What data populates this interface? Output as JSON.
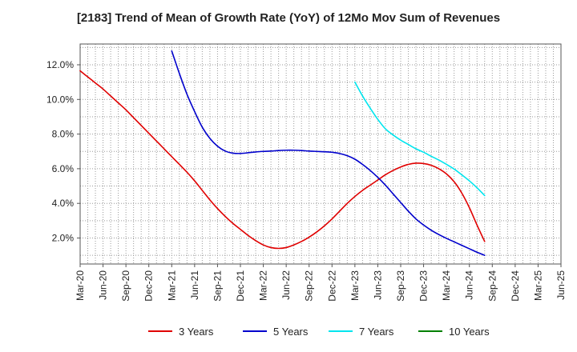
{
  "chart_data": {
    "type": "line",
    "title": "[2183]  Trend of Mean of Growth Rate (YoY) of 12Mo Mov Sum of Revenues",
    "xlabel": "",
    "ylabel": "",
    "x_tick_labels": [
      "Mar-20",
      "Jun-20",
      "Sep-20",
      "Dec-20",
      "Mar-21",
      "Jun-21",
      "Sep-21",
      "Dec-21",
      "Mar-22",
      "Jun-22",
      "Sep-22",
      "Dec-22",
      "Mar-23",
      "Jun-23",
      "Sep-23",
      "Dec-23",
      "Mar-24",
      "Jun-24",
      "Sep-24",
      "Dec-24",
      "Mar-25",
      "Jun-25"
    ],
    "y_ticks": [
      2.0,
      4.0,
      6.0,
      8.0,
      10.0,
      12.0
    ],
    "y_tick_labels": [
      "2.0%",
      "4.0%",
      "6.0%",
      "8.0%",
      "10.0%",
      "12.0%"
    ],
    "ylim": [
      0.5,
      13.2
    ],
    "grid": true,
    "legend_position": "bottom",
    "series": [
      {
        "name": "3 Years",
        "color": "#e00000",
        "x": [
          0,
          1,
          2,
          3,
          4,
          5,
          6,
          7,
          8,
          9,
          10,
          11,
          12,
          13,
          14,
          15,
          16,
          17,
          18,
          19,
          20,
          21,
          22,
          23,
          24,
          25,
          26,
          27,
          28,
          29,
          30,
          31,
          32,
          33,
          34,
          35,
          36,
          37,
          38,
          39,
          40,
          41,
          42,
          43,
          44,
          45,
          46,
          47,
          48,
          49,
          50,
          51,
          52,
          53,
          54,
          55,
          56,
          57,
          58,
          59,
          60
        ],
        "values": [
          11.65,
          11.3,
          10.95,
          10.6,
          10.2,
          9.8,
          9.4,
          8.95,
          8.5,
          8.05,
          7.6,
          7.15,
          6.7,
          6.25,
          5.8,
          5.3,
          4.75,
          4.2,
          3.7,
          3.25,
          2.85,
          2.5,
          2.15,
          1.85,
          1.6,
          1.45,
          1.4,
          1.45,
          1.6,
          1.8,
          2.05,
          2.35,
          2.7,
          3.1,
          3.55,
          4.0,
          4.4,
          4.75,
          5.05,
          5.35,
          5.65,
          5.9,
          6.1,
          6.25,
          6.32,
          6.3,
          6.2,
          6.0,
          5.7,
          5.25,
          4.6,
          3.75,
          2.75,
          1.8,
          null,
          null,
          null,
          null,
          null,
          null,
          null
        ]
      },
      {
        "name": "5 Years",
        "color": "#0000cc",
        "x": [
          12,
          13,
          14,
          15,
          16,
          17,
          18,
          19,
          20,
          21,
          22,
          23,
          24,
          25,
          26,
          27,
          28,
          29,
          30,
          31,
          32,
          33,
          34,
          35,
          36,
          37,
          38,
          39,
          40,
          41,
          42,
          43,
          44,
          45,
          46,
          47,
          48,
          49,
          50,
          51,
          52,
          53
        ],
        "values": [
          12.8,
          11.5,
          10.3,
          9.3,
          8.4,
          7.75,
          7.3,
          7.02,
          6.9,
          6.88,
          6.92,
          6.97,
          7.0,
          7.02,
          7.05,
          7.07,
          7.07,
          7.05,
          7.02,
          7.0,
          6.98,
          6.95,
          6.88,
          6.75,
          6.55,
          6.25,
          5.9,
          5.5,
          5.05,
          4.55,
          4.05,
          3.55,
          3.1,
          2.75,
          2.45,
          2.2,
          1.98,
          1.78,
          1.58,
          1.38,
          1.18,
          1.0
        ]
      },
      {
        "name": "7 Years",
        "color": "#00e5ee",
        "x": [
          36,
          37,
          38,
          39,
          40,
          41,
          42,
          43,
          44,
          45,
          46,
          47,
          48,
          49,
          50,
          51,
          52,
          53
        ],
        "values": [
          11.0,
          10.2,
          9.5,
          8.85,
          8.3,
          7.95,
          7.65,
          7.4,
          7.15,
          6.95,
          6.72,
          6.5,
          6.25,
          5.98,
          5.65,
          5.3,
          4.9,
          4.45
        ]
      },
      {
        "name": "10 Years",
        "color": "#008000",
        "x": [],
        "values": []
      }
    ]
  }
}
